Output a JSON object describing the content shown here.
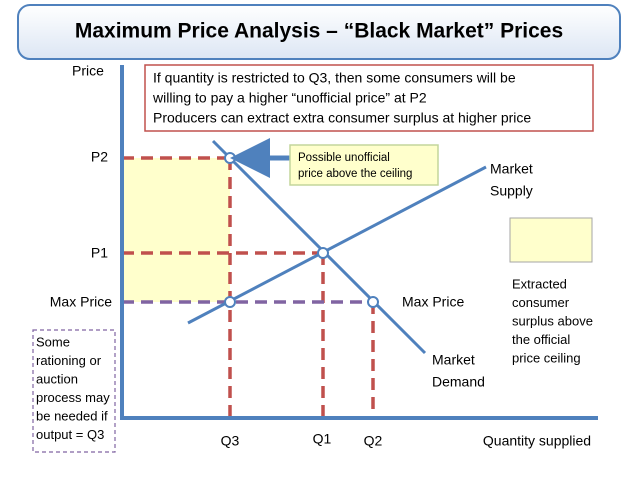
{
  "header": {
    "title": "Maximum Price Analysis – “Black Market” Prices"
  },
  "axes": {
    "y_label": "Price",
    "x_label": "Quantity supplied"
  },
  "price_levels": {
    "p2": "P2",
    "p1": "P1",
    "max_price": "Max Price",
    "max_price_right": "Max Price"
  },
  "quantity_levels": {
    "q3": "Q3",
    "q1": "Q1",
    "q2": "Q2"
  },
  "explanation": [
    "If quantity is restricted to Q3, then some consumers will be",
    "willing to pay a higher “unofficial price” at P2",
    "Producers can extract extra consumer surplus at higher price"
  ],
  "callout": [
    "Possible unofficial",
    "price above the ceiling"
  ],
  "curves": {
    "supply": [
      "Market",
      "Supply"
    ],
    "demand": [
      "Market",
      "Demand"
    ]
  },
  "legend": [
    "Extracted",
    "consumer",
    "surplus above",
    "the official",
    "price ceiling"
  ],
  "rationing_note": [
    "Some",
    "rationing or",
    "auction",
    "process may",
    "be needed if",
    "output = Q3"
  ]
}
